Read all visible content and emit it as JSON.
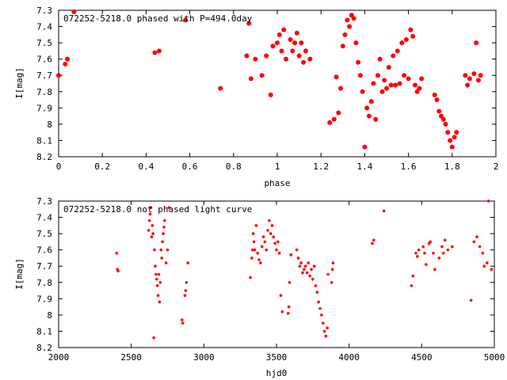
{
  "colors": {
    "points": "#ff0000",
    "axes": "#000000",
    "background": "#ffffff"
  },
  "chart_data": [
    {
      "type": "scatter",
      "title": "072252-5218.0 phased with P=494.0day",
      "xlabel": "phase",
      "ylabel": "I[mag]",
      "xlim": [
        0,
        2
      ],
      "ylim": [
        8.2,
        7.3
      ],
      "y_inverted": true,
      "xticks": [
        "0",
        "0.2",
        "0.4",
        "0.6",
        "0.8",
        "1",
        "1.2",
        "1.4",
        "1.6",
        "1.8",
        "2"
      ],
      "yticks": [
        "7.3",
        "7.4",
        "7.5",
        "7.6",
        "7.7",
        "7.8",
        "7.9",
        "8",
        "8.1",
        "8.2"
      ],
      "grid": false,
      "marker": "filled-circle",
      "series": [
        {
          "x": [
            0.0,
            0.03,
            0.04,
            0.07,
            0.44,
            0.46,
            0.58,
            0.74,
            0.86,
            0.87,
            0.88,
            0.9,
            0.93,
            0.95,
            0.97,
            0.98,
            1.0,
            1.01,
            1.02,
            1.03,
            1.04,
            1.06,
            1.07,
            1.08,
            1.09,
            1.1,
            1.11,
            1.12,
            1.13,
            1.15,
            1.24,
            1.26,
            1.27,
            1.28,
            1.29,
            1.3,
            1.31,
            1.32,
            1.33,
            1.34,
            1.35,
            1.36,
            1.37,
            1.38,
            1.39,
            1.4,
            1.41,
            1.42,
            1.43,
            1.44,
            1.45,
            1.46,
            1.47,
            1.48,
            1.49,
            1.5,
            1.51,
            1.52,
            1.53,
            1.54,
            1.55,
            1.56,
            1.57,
            1.58,
            1.59,
            1.6,
            1.61,
            1.62,
            1.63,
            1.64,
            1.65,
            1.66,
            1.72,
            1.73,
            1.74,
            1.75,
            1.76,
            1.77,
            1.78,
            1.79,
            1.8,
            1.81,
            1.82,
            1.86,
            1.87,
            1.88,
            1.9,
            1.91,
            1.92,
            1.93
          ],
          "y": [
            7.7,
            7.63,
            7.6,
            7.31,
            7.56,
            7.55,
            7.36,
            7.78,
            7.58,
            7.38,
            7.72,
            7.6,
            7.7,
            7.58,
            7.82,
            7.52,
            7.5,
            7.45,
            7.55,
            7.42,
            7.6,
            7.48,
            7.55,
            7.5,
            7.44,
            7.58,
            7.5,
            7.62,
            7.55,
            7.6,
            7.99,
            7.97,
            7.71,
            7.93,
            7.78,
            7.52,
            7.45,
            7.36,
            7.4,
            7.33,
            7.35,
            7.5,
            7.62,
            7.7,
            7.8,
            8.14,
            7.9,
            7.95,
            7.86,
            7.75,
            7.97,
            7.7,
            7.6,
            7.8,
            7.73,
            7.78,
            7.65,
            7.76,
            7.58,
            7.76,
            7.55,
            7.75,
            7.5,
            7.7,
            7.48,
            7.72,
            7.42,
            7.46,
            7.76,
            7.8,
            7.78,
            7.72,
            7.82,
            7.85,
            7.92,
            7.95,
            7.97,
            8.0,
            8.05,
            8.1,
            8.14,
            8.08,
            8.05,
            7.7,
            7.76,
            7.72,
            7.69,
            7.5,
            7.73,
            7.7
          ]
        }
      ]
    },
    {
      "type": "scatter",
      "title": "072252-5218.0 not phased light curve",
      "xlabel": "hjd0",
      "ylabel": "I[mag]",
      "xlim": [
        2000,
        5000
      ],
      "ylim": [
        8.2,
        7.3
      ],
      "y_inverted": true,
      "xticks": [
        "2000",
        "2500",
        "3000",
        "3500",
        "4000",
        "4500",
        "5000"
      ],
      "yticks": [
        "7.3",
        "7.4",
        "7.5",
        "7.6",
        "7.7",
        "7.8",
        "7.9",
        "8",
        "8.1",
        "8.2"
      ],
      "grid": false,
      "marker": "filled-circle",
      "series": [
        {
          "x": [
            2400,
            2405,
            2410,
            2620,
            2625,
            2630,
            2635,
            2640,
            2645,
            2650,
            2655,
            2660,
            2665,
            2670,
            2675,
            2680,
            2685,
            2690,
            2695,
            2700,
            2705,
            2710,
            2715,
            2720,
            2725,
            2730,
            2740,
            2750,
            2760,
            2850,
            2855,
            2870,
            2875,
            2880,
            2890,
            3320,
            3330,
            3335,
            3340,
            3345,
            3350,
            3360,
            3370,
            3380,
            3390,
            3400,
            3410,
            3420,
            3430,
            3440,
            3450,
            3460,
            3470,
            3480,
            3490,
            3500,
            3510,
            3520,
            3530,
            3540,
            3580,
            3585,
            3590,
            3600,
            3640,
            3650,
            3660,
            3670,
            3680,
            3690,
            3700,
            3710,
            3720,
            3730,
            3740,
            3750,
            3760,
            3770,
            3780,
            3790,
            3800,
            3810,
            3820,
            3830,
            3840,
            3850,
            3855,
            3880,
            3885,
            3890,
            4160,
            4170,
            4240,
            4430,
            4440,
            4460,
            4470,
            4480,
            4510,
            4520,
            4530,
            4550,
            4560,
            4580,
            4590,
            4620,
            4640,
            4650,
            4660,
            4680,
            4710,
            4840,
            4860,
            4880,
            4900,
            4920,
            4930,
            4950,
            4960,
            4980
          ],
          "y": [
            7.62,
            7.72,
            7.73,
            7.48,
            7.42,
            7.38,
            7.34,
            7.52,
            7.45,
            7.5,
            8.14,
            7.6,
            7.7,
            7.75,
            7.78,
            7.82,
            7.88,
            7.75,
            7.92,
            7.8,
            7.6,
            7.65,
            7.55,
            7.5,
            7.46,
            7.42,
            7.68,
            7.6,
            7.34,
            8.03,
            8.05,
            7.88,
            7.85,
            7.8,
            7.68,
            7.77,
            7.65,
            7.6,
            7.5,
            7.55,
            7.6,
            7.45,
            7.62,
            7.66,
            7.68,
            7.58,
            7.52,
            7.55,
            7.6,
            7.48,
            7.42,
            7.5,
            7.45,
            7.52,
            7.56,
            7.6,
            7.55,
            7.62,
            7.88,
            7.98,
            7.99,
            7.95,
            7.8,
            7.63,
            7.6,
            7.65,
            7.7,
            7.68,
            7.74,
            7.72,
            7.7,
            7.74,
            7.68,
            7.76,
            7.72,
            7.78,
            7.7,
            7.82,
            7.86,
            7.92,
            7.96,
            8.0,
            8.05,
            8.1,
            8.13,
            8.08,
            7.75,
            7.8,
            7.72,
            7.68,
            7.56,
            7.54,
            7.36,
            7.82,
            7.76,
            7.62,
            7.64,
            7.6,
            7.58,
            7.62,
            7.69,
            7.56,
            7.55,
            7.62,
            7.72,
            7.65,
            7.58,
            7.62,
            7.54,
            7.6,
            7.58,
            7.91,
            7.55,
            7.52,
            7.58,
            7.62,
            7.7,
            7.68,
            7.3,
            7.72
          ]
        }
      ]
    }
  ]
}
